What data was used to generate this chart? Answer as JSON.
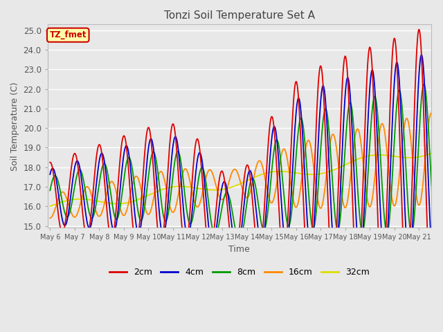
{
  "title": "Tonzi Soil Temperature Set A",
  "xlabel": "Time",
  "ylabel": "Soil Temperature (C)",
  "ylim": [
    15.0,
    25.0
  ],
  "yticks": [
    15.0,
    16.0,
    17.0,
    18.0,
    19.0,
    20.0,
    21.0,
    22.0,
    23.0,
    24.0,
    25.0
  ],
  "annotation_label": "TZ_fmet",
  "annotation_color": "#cc0000",
  "annotation_bg": "#ffffaa",
  "series_colors": {
    "2cm": "#dd0000",
    "4cm": "#0000cc",
    "8cm": "#009900",
    "16cm": "#ff8800",
    "32cm": "#dddd00"
  },
  "series_labels": [
    "2cm",
    "4cm",
    "8cm",
    "16cm",
    "32cm"
  ],
  "background_color": "#e8e8e8",
  "plot_bg_color": "#e8e8e8",
  "grid_color": "#ffffff"
}
